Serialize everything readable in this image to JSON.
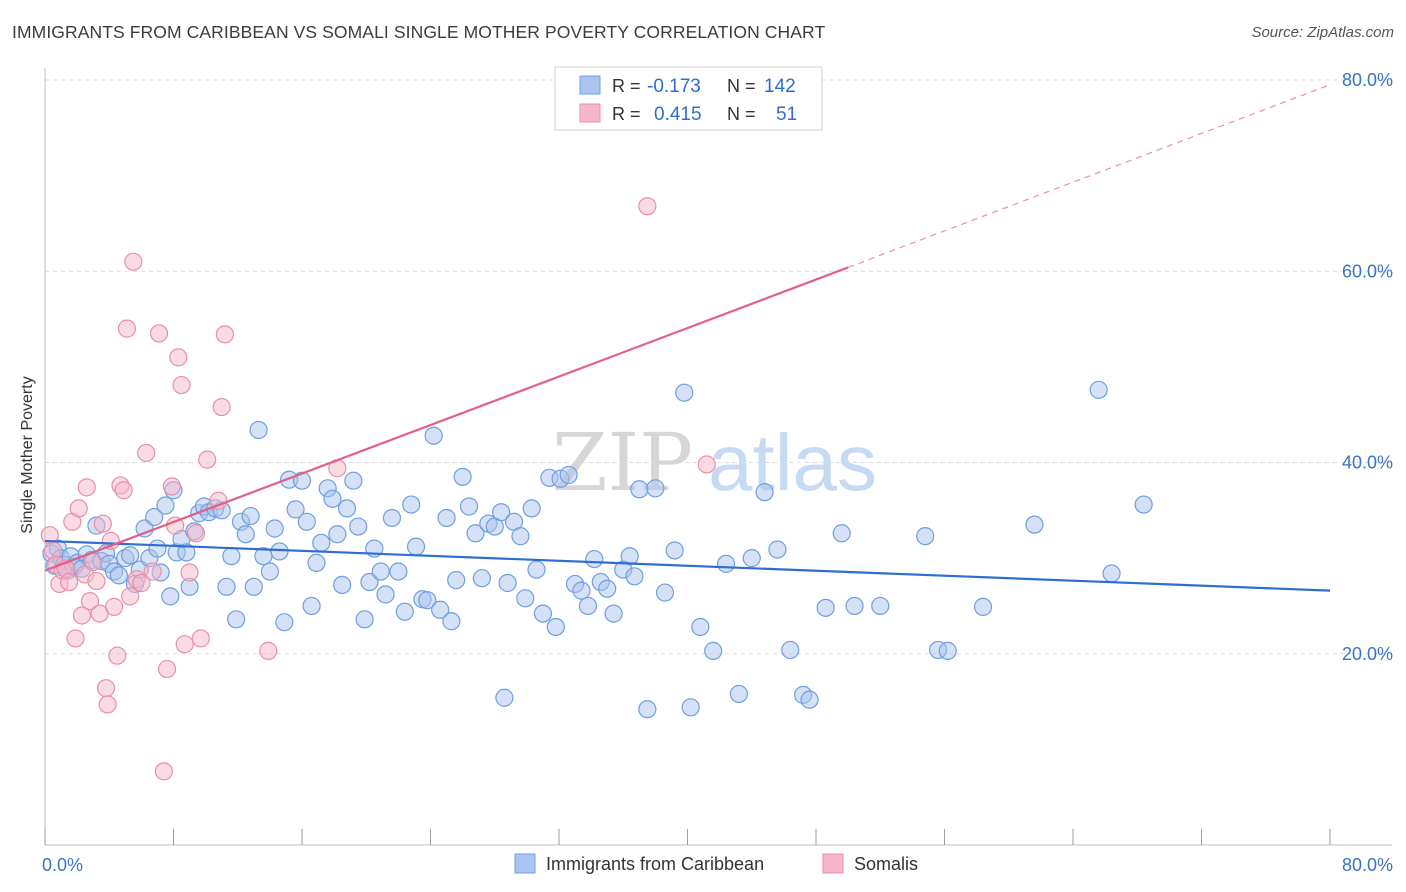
{
  "title": "IMMIGRANTS FROM CARIBBEAN VS SOMALI SINGLE MOTHER POVERTY CORRELATION CHART",
  "source": "Source: ZipAtlas.com",
  "colors": {
    "blue_fill": "#a9c4ee",
    "blue_stroke": "#6f9fe0",
    "blue_line": "#2e6ed0",
    "pink_fill": "#f5b8ca",
    "pink_stroke": "#e98fab",
    "pink_line": "#e0608a",
    "tick_label": "#3a73c6",
    "grid": "#dcdcdc"
  },
  "legend_box": {
    "rows": [
      {
        "r_label": "R =",
        "r_value": "-0.173",
        "n_label": "N =",
        "n_value": "142"
      },
      {
        "r_label": "R =",
        "r_value": "0.415",
        "n_label": "N =",
        "n_value": "51"
      }
    ]
  },
  "bottom_legend": [
    "Immigrants from Caribbean",
    "Somalis"
  ],
  "watermark": {
    "part1": "ZIP",
    "part2": "atlas"
  },
  "chart_data": {
    "type": "scatter",
    "title": "IMMIGRANTS FROM CARIBBEAN VS SOMALI SINGLE MOTHER POVERTY CORRELATION CHART",
    "xlabel": "",
    "ylabel": "Single Mother Poverty",
    "xlim": [
      0,
      80
    ],
    "ylim": [
      0,
      80
    ],
    "x_tick_labels": [
      "0.0%",
      "80.0%"
    ],
    "y_tick_labels": [
      "20.0%",
      "40.0%",
      "60.0%",
      "80.0%"
    ],
    "y_ticks": [
      20,
      40,
      60,
      80
    ],
    "grid": true,
    "legend_position": "top-center",
    "series": [
      {
        "name": "Immigrants from Caribbean",
        "R": -0.173,
        "N": 142,
        "trend": {
          "x0": 0,
          "y0": 31.8,
          "x1": 80,
          "y1": 26.6
        },
        "points": [
          [
            0.4,
            30.5
          ],
          [
            0.6,
            29.2
          ],
          [
            0.8,
            31.0
          ],
          [
            1.0,
            30.0
          ],
          [
            1.2,
            29.3
          ],
          [
            1.4,
            28.7
          ],
          [
            1.6,
            30.2
          ],
          [
            1.8,
            29.1
          ],
          [
            2.0,
            29.5
          ],
          [
            2.3,
            28.9
          ],
          [
            2.6,
            30.4
          ],
          [
            2.9,
            29.8
          ],
          [
            3.2,
            33.4
          ],
          [
            3.5,
            29.7
          ],
          [
            3.8,
            30.5
          ],
          [
            4.0,
            29.4
          ],
          [
            4.3,
            28.6
          ],
          [
            4.6,
            28.2
          ],
          [
            5.0,
            30.0
          ],
          [
            5.3,
            30.3
          ],
          [
            5.6,
            27.3
          ],
          [
            5.9,
            28.8
          ],
          [
            6.2,
            33.1
          ],
          [
            6.5,
            30.0
          ],
          [
            6.8,
            34.3
          ],
          [
            7.0,
            31.0
          ],
          [
            7.2,
            28.5
          ],
          [
            7.5,
            35.5
          ],
          [
            7.8,
            26.0
          ],
          [
            8.0,
            37.1
          ],
          [
            8.2,
            30.6
          ],
          [
            8.5,
            32.0
          ],
          [
            8.8,
            30.6
          ],
          [
            9.0,
            27.0
          ],
          [
            9.3,
            32.8
          ],
          [
            9.6,
            34.7
          ],
          [
            9.9,
            35.4
          ],
          [
            10.2,
            34.8
          ],
          [
            10.6,
            35.2
          ],
          [
            11.0,
            35.0
          ],
          [
            11.3,
            27.0
          ],
          [
            11.6,
            30.2
          ],
          [
            11.9,
            23.6
          ],
          [
            12.2,
            33.8
          ],
          [
            12.5,
            32.5
          ],
          [
            12.8,
            34.4
          ],
          [
            13.0,
            27.0
          ],
          [
            13.3,
            43.4
          ],
          [
            13.6,
            30.2
          ],
          [
            14.0,
            28.6
          ],
          [
            14.3,
            33.1
          ],
          [
            14.6,
            30.7
          ],
          [
            14.9,
            23.3
          ],
          [
            15.2,
            38.2
          ],
          [
            15.6,
            35.1
          ],
          [
            16.0,
            38.1
          ],
          [
            16.3,
            33.8
          ],
          [
            16.6,
            25.0
          ],
          [
            16.9,
            29.5
          ],
          [
            17.2,
            31.6
          ],
          [
            17.6,
            37.3
          ],
          [
            17.9,
            36.2
          ],
          [
            18.2,
            32.5
          ],
          [
            18.5,
            27.2
          ],
          [
            18.8,
            35.2
          ],
          [
            19.2,
            38.1
          ],
          [
            19.5,
            33.3
          ],
          [
            19.9,
            23.6
          ],
          [
            20.2,
            27.5
          ],
          [
            20.5,
            31.0
          ],
          [
            20.9,
            28.6
          ],
          [
            21.2,
            26.2
          ],
          [
            21.6,
            34.2
          ],
          [
            22.0,
            28.6
          ],
          [
            22.4,
            24.4
          ],
          [
            22.8,
            35.6
          ],
          [
            23.1,
            31.2
          ],
          [
            23.5,
            25.7
          ],
          [
            23.8,
            25.6
          ],
          [
            24.2,
            42.8
          ],
          [
            24.6,
            24.6
          ],
          [
            25.0,
            34.2
          ],
          [
            25.3,
            23.4
          ],
          [
            25.6,
            27.7
          ],
          [
            26.0,
            38.5
          ],
          [
            26.4,
            35.4
          ],
          [
            26.8,
            32.6
          ],
          [
            27.2,
            27.9
          ],
          [
            27.6,
            33.6
          ],
          [
            28.0,
            33.3
          ],
          [
            28.4,
            34.8
          ],
          [
            28.8,
            27.4
          ],
          [
            29.2,
            33.8
          ],
          [
            29.6,
            32.3
          ],
          [
            29.9,
            25.8
          ],
          [
            30.3,
            35.2
          ],
          [
            30.6,
            28.8
          ],
          [
            31.0,
            24.2
          ],
          [
            31.4,
            38.4
          ],
          [
            31.8,
            22.8
          ],
          [
            32.1,
            38.3
          ],
          [
            32.6,
            38.7
          ],
          [
            33.0,
            27.3
          ],
          [
            33.4,
            26.6
          ],
          [
            33.8,
            25.0
          ],
          [
            34.2,
            29.9
          ],
          [
            34.6,
            27.5
          ],
          [
            35.0,
            26.8
          ],
          [
            35.4,
            24.2
          ],
          [
            36.0,
            28.8
          ],
          [
            36.4,
            30.2
          ],
          [
            36.7,
            28.1
          ],
          [
            37.0,
            37.2
          ],
          [
            37.5,
            14.2
          ],
          [
            38.0,
            37.3
          ],
          [
            38.6,
            26.4
          ],
          [
            39.2,
            30.8
          ],
          [
            39.8,
            47.3
          ],
          [
            40.2,
            14.4
          ],
          [
            40.8,
            22.8
          ],
          [
            41.6,
            20.3
          ],
          [
            42.4,
            29.4
          ],
          [
            43.2,
            15.8
          ],
          [
            44.0,
            30.0
          ],
          [
            44.8,
            36.9
          ],
          [
            45.6,
            30.9
          ],
          [
            46.4,
            20.4
          ],
          [
            47.2,
            15.7
          ],
          [
            47.6,
            15.2
          ],
          [
            48.6,
            24.8
          ],
          [
            49.6,
            32.6
          ],
          [
            50.4,
            25.0
          ],
          [
            52.0,
            25.0
          ],
          [
            54.8,
            32.3
          ],
          [
            55.6,
            20.4
          ],
          [
            56.2,
            20.3
          ],
          [
            58.4,
            24.9
          ],
          [
            61.6,
            33.5
          ],
          [
            65.6,
            47.6
          ],
          [
            66.4,
            28.4
          ],
          [
            68.4,
            35.6
          ],
          [
            28.6,
            15.4
          ]
        ]
      },
      {
        "name": "Somalis",
        "R": 0.415,
        "N": 51,
        "trend_solid": {
          "x0": 0,
          "y0": 28.7,
          "x1": 50,
          "y1": 60.4
        },
        "trend_dashed": {
          "x0": 50,
          "y0": 60.4,
          "x1": 80,
          "y1": 79.5
        },
        "points": [
          [
            0.3,
            32.4
          ],
          [
            0.5,
            30.8
          ],
          [
            0.7,
            29.3
          ],
          [
            0.9,
            27.3
          ],
          [
            1.1,
            28.7
          ],
          [
            1.3,
            28.9
          ],
          [
            1.5,
            27.5
          ],
          [
            1.7,
            33.8
          ],
          [
            1.9,
            21.6
          ],
          [
            2.1,
            35.2
          ],
          [
            2.3,
            24.0
          ],
          [
            2.5,
            28.3
          ],
          [
            2.6,
            37.4
          ],
          [
            2.8,
            25.5
          ],
          [
            3.0,
            29.6
          ],
          [
            3.2,
            27.6
          ],
          [
            3.4,
            24.2
          ],
          [
            3.6,
            33.6
          ],
          [
            3.8,
            16.4
          ],
          [
            3.9,
            14.7
          ],
          [
            4.1,
            31.8
          ],
          [
            4.3,
            24.9
          ],
          [
            4.5,
            19.8
          ],
          [
            4.7,
            37.6
          ],
          [
            4.9,
            37.1
          ],
          [
            5.1,
            54.0
          ],
          [
            5.3,
            26.0
          ],
          [
            5.5,
            61.0
          ],
          [
            5.7,
            27.8
          ],
          [
            6.0,
            27.4
          ],
          [
            6.3,
            41.0
          ],
          [
            6.7,
            28.6
          ],
          [
            7.1,
            53.5
          ],
          [
            7.4,
            7.7
          ],
          [
            7.6,
            18.4
          ],
          [
            7.9,
            37.5
          ],
          [
            8.1,
            33.4
          ],
          [
            8.3,
            51.0
          ],
          [
            8.5,
            48.1
          ],
          [
            8.7,
            21.0
          ],
          [
            9.0,
            28.5
          ],
          [
            9.4,
            32.6
          ],
          [
            9.7,
            21.6
          ],
          [
            10.1,
            40.3
          ],
          [
            10.8,
            36.0
          ],
          [
            11.0,
            45.8
          ],
          [
            11.2,
            53.4
          ],
          [
            13.9,
            20.3
          ],
          [
            18.2,
            39.4
          ],
          [
            41.2,
            39.8
          ],
          [
            37.5,
            66.8
          ]
        ]
      }
    ]
  }
}
